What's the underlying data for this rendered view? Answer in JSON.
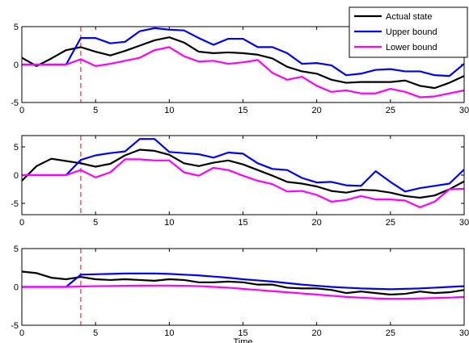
{
  "chart_data": [
    {
      "type": "line",
      "xlim": [
        0,
        30
      ],
      "ylim": [
        -5,
        5
      ],
      "xticks": [
        0,
        5,
        10,
        15,
        20,
        25,
        30
      ],
      "yticks": [
        -5,
        0,
        5
      ],
      "xlabel": "",
      "grid": false,
      "vline": {
        "x": 4,
        "color": "#ff0000",
        "style": "dashed"
      },
      "legend": {
        "position": "top-right"
      },
      "series": [
        {
          "name": "Actual state",
          "color": "#000000",
          "x": [
            0,
            1,
            2,
            3,
            4,
            5,
            6,
            7,
            8,
            9,
            10,
            11,
            12,
            13,
            14,
            15,
            16,
            17,
            18,
            19,
            20,
            21,
            22,
            23,
            24,
            25,
            26,
            27,
            28,
            29,
            30
          ],
          "y": [
            0.9,
            -0.2,
            0.8,
            1.9,
            2.3,
            1.7,
            1.2,
            1.8,
            2.5,
            3.2,
            3.6,
            2.9,
            1.7,
            1.5,
            1.6,
            1.5,
            1.3,
            0.8,
            -0.3,
            -0.9,
            -1.2,
            -2.0,
            -2.4,
            -2.3,
            -2.3,
            -2.3,
            -2.1,
            -2.8,
            -3.1,
            -2.4,
            -1.5
          ]
        },
        {
          "name": "Upper bound",
          "color": "#0000ff",
          "x": [
            0,
            1,
            2,
            3,
            4,
            5,
            6,
            7,
            8,
            9,
            10,
            11,
            12,
            13,
            14,
            15,
            16,
            17,
            18,
            19,
            20,
            21,
            22,
            23,
            24,
            25,
            26,
            27,
            28,
            29,
            30
          ],
          "y": [
            0,
            0,
            0,
            0,
            3.5,
            3.5,
            2.8,
            3.0,
            4.4,
            4.8,
            4.6,
            4.5,
            3.5,
            2.6,
            3.4,
            3.4,
            2.3,
            2.3,
            1.5,
            0.1,
            0.2,
            -0.1,
            -1.4,
            -1.2,
            -0.7,
            -0.6,
            -0.9,
            -0.9,
            -1.4,
            -1.5,
            0.1
          ]
        },
        {
          "name": "Lower bound",
          "color": "#ff00ff",
          "x": [
            0,
            1,
            2,
            3,
            4,
            5,
            6,
            7,
            8,
            9,
            10,
            11,
            12,
            13,
            14,
            15,
            16,
            17,
            18,
            19,
            20,
            21,
            22,
            23,
            24,
            25,
            26,
            27,
            28,
            29,
            30
          ],
          "y": [
            0,
            0,
            0,
            0,
            0.7,
            -0.2,
            0.1,
            0.5,
            0.9,
            1.9,
            2.3,
            1.1,
            0.4,
            0.5,
            0.1,
            0.3,
            0.6,
            -1.1,
            -2.0,
            -1.6,
            -2.8,
            -3.6,
            -3.4,
            -3.8,
            -3.8,
            -3.2,
            -3.6,
            -4.3,
            -4.2,
            -3.8,
            -3.4
          ]
        }
      ]
    },
    {
      "type": "line",
      "xlim": [
        0,
        30
      ],
      "ylim": [
        -7,
        7
      ],
      "xticks": [
        0,
        5,
        10,
        15,
        20,
        25,
        30
      ],
      "yticks": [
        -5,
        0,
        5
      ],
      "xlabel": "",
      "grid": false,
      "vline": {
        "x": 4,
        "color": "#ff0000",
        "style": "dashed"
      },
      "series": [
        {
          "name": "Actual state",
          "color": "#000000",
          "x": [
            0,
            1,
            2,
            3,
            4,
            5,
            6,
            7,
            8,
            9,
            10,
            11,
            12,
            13,
            14,
            15,
            16,
            17,
            18,
            19,
            20,
            21,
            22,
            23,
            24,
            25,
            26,
            27,
            28,
            29,
            30
          ],
          "y": [
            -1.0,
            1.6,
            2.9,
            2.5,
            2.1,
            1.5,
            2.0,
            3.5,
            4.5,
            4.3,
            3.6,
            2.1,
            1.6,
            2.2,
            2.6,
            1.9,
            0.9,
            -0.1,
            -1.2,
            -1.5,
            -2.0,
            -2.8,
            -3.1,
            -2.6,
            -2.7,
            -3.1,
            -3.7,
            -4.0,
            -3.6,
            -2.5,
            -1.1
          ]
        },
        {
          "name": "Upper bound",
          "color": "#0000ff",
          "x": [
            0,
            1,
            2,
            3,
            4,
            5,
            6,
            7,
            8,
            9,
            10,
            11,
            12,
            13,
            14,
            15,
            16,
            17,
            18,
            19,
            20,
            21,
            22,
            23,
            24,
            25,
            26,
            27,
            28,
            29,
            30
          ],
          "y": [
            0,
            0,
            0,
            0,
            2.7,
            3.5,
            3.9,
            4.2,
            6.4,
            6.4,
            4.1,
            3.9,
            3.7,
            3.1,
            4.0,
            3.8,
            2.1,
            1.1,
            0.9,
            -0.5,
            -1.3,
            -1.2,
            -1.8,
            -1.9,
            0.7,
            -1.2,
            -2.9,
            -2.3,
            -1.9,
            -1.5,
            1.0
          ]
        },
        {
          "name": "Lower bound",
          "color": "#ff00ff",
          "x": [
            0,
            1,
            2,
            3,
            4,
            5,
            6,
            7,
            8,
            9,
            10,
            11,
            12,
            13,
            14,
            15,
            16,
            17,
            18,
            19,
            20,
            21,
            22,
            23,
            24,
            25,
            26,
            27,
            28,
            29,
            30
          ],
          "y": [
            0,
            0,
            0,
            0,
            0.9,
            -0.4,
            0.5,
            2.8,
            2.8,
            2.6,
            2.6,
            0.5,
            -0.1,
            1.3,
            0.9,
            -0.1,
            -1.0,
            -1.6,
            -2.9,
            -2.8,
            -3.5,
            -4.7,
            -4.4,
            -3.7,
            -4.3,
            -4.3,
            -4.5,
            -5.7,
            -4.7,
            -2.5,
            -2.4
          ]
        }
      ]
    },
    {
      "type": "line",
      "xlim": [
        0,
        30
      ],
      "ylim": [
        -5,
        5
      ],
      "xticks": [
        0,
        5,
        10,
        15,
        20,
        25,
        30
      ],
      "yticks": [
        -5,
        0,
        5
      ],
      "xlabel": "Time",
      "grid": false,
      "vline": {
        "x": 4,
        "color": "#ff0000",
        "style": "dashed"
      },
      "series": [
        {
          "name": "Actual state",
          "color": "#000000",
          "x": [
            0,
            1,
            2,
            3,
            4,
            5,
            6,
            7,
            8,
            9,
            10,
            11,
            12,
            13,
            14,
            15,
            16,
            17,
            18,
            19,
            20,
            21,
            22,
            23,
            24,
            25,
            26,
            27,
            28,
            29,
            30
          ],
          "y": [
            2.0,
            1.8,
            1.2,
            1.0,
            1.3,
            1.0,
            0.9,
            1.0,
            0.9,
            0.8,
            1.0,
            0.9,
            0.6,
            0.6,
            0.7,
            0.6,
            0.3,
            0.3,
            -0.1,
            -0.2,
            -0.2,
            -0.4,
            -0.8,
            -0.6,
            -0.8,
            -1.0,
            -0.9,
            -0.6,
            -0.8,
            -0.7,
            -0.4
          ]
        },
        {
          "name": "Upper bound",
          "color": "#0000ff",
          "x": [
            0,
            1,
            2,
            3,
            4,
            5,
            6,
            7,
            8,
            9,
            10,
            11,
            12,
            13,
            14,
            15,
            16,
            17,
            18,
            19,
            20,
            21,
            22,
            23,
            24,
            25,
            26,
            27,
            28,
            29,
            30
          ],
          "y": [
            0,
            0,
            0,
            0,
            1.6,
            1.65,
            1.7,
            1.75,
            1.75,
            1.75,
            1.7,
            1.6,
            1.5,
            1.35,
            1.2,
            1.0,
            0.85,
            0.7,
            0.5,
            0.3,
            0.15,
            0.0,
            -0.1,
            -0.2,
            -0.25,
            -0.3,
            -0.25,
            -0.2,
            -0.1,
            0.0,
            0.1
          ]
        },
        {
          "name": "Lower bound",
          "color": "#ff00ff",
          "x": [
            0,
            1,
            2,
            3,
            4,
            5,
            6,
            7,
            8,
            9,
            10,
            11,
            12,
            13,
            14,
            15,
            16,
            17,
            18,
            19,
            20,
            21,
            22,
            23,
            24,
            25,
            26,
            27,
            28,
            29,
            30
          ],
          "y": [
            0,
            0,
            0,
            0,
            0.05,
            0.1,
            0.12,
            0.15,
            0.17,
            0.18,
            0.18,
            0.15,
            0.1,
            0.0,
            -0.1,
            -0.25,
            -0.4,
            -0.55,
            -0.7,
            -0.85,
            -1.0,
            -1.15,
            -1.3,
            -1.4,
            -1.5,
            -1.55,
            -1.55,
            -1.5,
            -1.45,
            -1.4,
            -1.3
          ]
        }
      ]
    }
  ]
}
